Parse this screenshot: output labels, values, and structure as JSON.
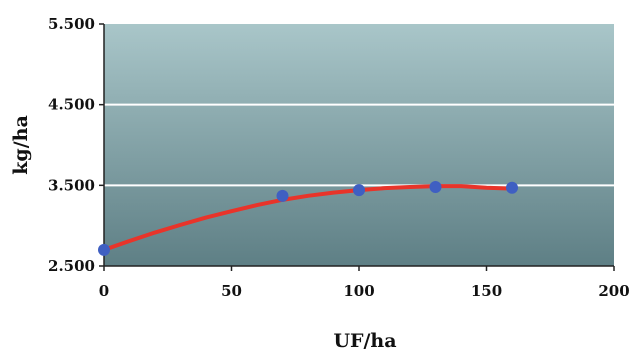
{
  "chart_data": {
    "type": "scatter",
    "title": "",
    "xlabel": "UF/ha",
    "ylabel": "kg/ha",
    "xlim": [
      0,
      200
    ],
    "ylim": [
      2500,
      5500
    ],
    "x_ticks": [
      0,
      50,
      100,
      150,
      200
    ],
    "x_tick_labels": [
      "0",
      "50",
      "100",
      "150",
      "200"
    ],
    "y_ticks": [
      2500,
      3500,
      4500,
      5500
    ],
    "y_tick_labels": [
      "2.500",
      "3.500",
      "4.500",
      "5.500"
    ],
    "grid": true,
    "legend": "none",
    "series": [
      {
        "type": "scatter",
        "x": [
          0,
          70,
          100,
          130,
          160
        ],
        "y": [
          2700,
          3370,
          3440,
          3480,
          3470
        ]
      },
      {
        "type": "line",
        "x": [
          0,
          10,
          20,
          30,
          40,
          50,
          60,
          70,
          80,
          90,
          100,
          110,
          120,
          130,
          140,
          150,
          160
        ],
        "y": [
          2700,
          2810,
          2915,
          3010,
          3100,
          3180,
          3255,
          3320,
          3370,
          3410,
          3440,
          3465,
          3480,
          3490,
          3490,
          3470,
          3460
        ]
      }
    ],
    "colors": {
      "plot_top": "#a9c6c9",
      "plot_bottom": "#5e7f85",
      "gridline": "#ffffff",
      "marker": "#3f5fc2",
      "fit_line": "#e8342a",
      "axis": "#222222"
    }
  }
}
